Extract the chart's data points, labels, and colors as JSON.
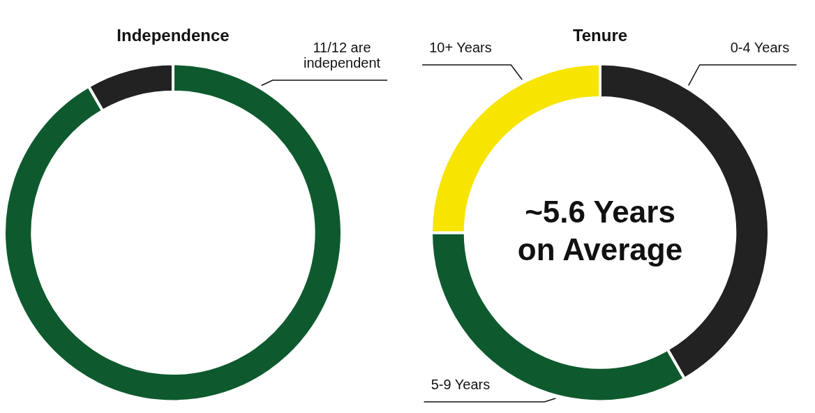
{
  "chart_data": [
    {
      "type": "donut",
      "title": "Independence",
      "categories": [
        "11/12 are independent",
        null
      ],
      "values": [
        91.67,
        8.33
      ],
      "colors": [
        "#0e5a2e",
        "#222222"
      ]
    },
    {
      "type": "donut",
      "title": "Tenure",
      "categories": [
        "0-4 Years",
        "5-9 Years",
        "10+ Years"
      ],
      "values": [
        41.67,
        33.33,
        25
      ],
      "colors": [
        "#222222",
        "#0e5a2e",
        "#f7e400"
      ],
      "annotations": [
        "~5.6 Years on Average"
      ]
    }
  ]
}
